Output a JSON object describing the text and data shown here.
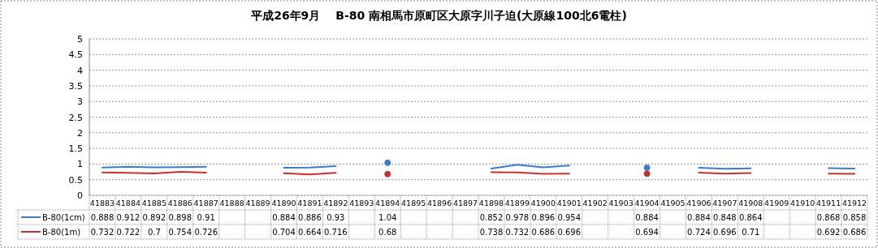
{
  "chart_data": {
    "type": "line",
    "title": "平成26年9月　 B-80 南相馬市原町区大原字川子迫(大原線100北6電柱)",
    "categories": [
      "41883",
      "41884",
      "41885",
      "41886",
      "41887",
      "41888",
      "41889",
      "41890",
      "41891",
      "41892",
      "41893",
      "41894",
      "41895",
      "41896",
      "41897",
      "41898",
      "41899",
      "41900",
      "41901",
      "41902",
      "41903",
      "41904",
      "41905",
      "41906",
      "41907",
      "41908",
      "41909",
      "41910",
      "41911",
      "41912"
    ],
    "series": [
      {
        "name": "B-80(1cm)",
        "color": "#3a7bd5",
        "values": [
          0.888,
          0.912,
          0.892,
          0.898,
          0.91,
          null,
          null,
          0.884,
          0.886,
          0.93,
          null,
          1.04,
          null,
          null,
          null,
          0.852,
          0.978,
          0.896,
          0.954,
          null,
          null,
          0.884,
          null,
          0.884,
          0.848,
          0.864,
          null,
          null,
          0.868,
          0.858
        ]
      },
      {
        "name": "B-80(1m)",
        "color": "#c8302c",
        "values": [
          0.732,
          0.722,
          0.7,
          0.754,
          0.726,
          null,
          null,
          0.704,
          0.664,
          0.716,
          null,
          0.68,
          null,
          null,
          null,
          0.738,
          0.732,
          0.686,
          0.696,
          null,
          null,
          0.694,
          null,
          0.724,
          0.696,
          0.71,
          null,
          null,
          0.692,
          0.686
        ]
      }
    ],
    "ylim": [
      0,
      5
    ],
    "yticks": [
      0,
      0.5,
      1,
      1.5,
      2,
      2.5,
      3,
      3.5,
      4,
      4.5,
      5
    ],
    "grid": "y",
    "legend": "bottom",
    "data_labels": true,
    "line_style": "solid",
    "marker": "none"
  }
}
